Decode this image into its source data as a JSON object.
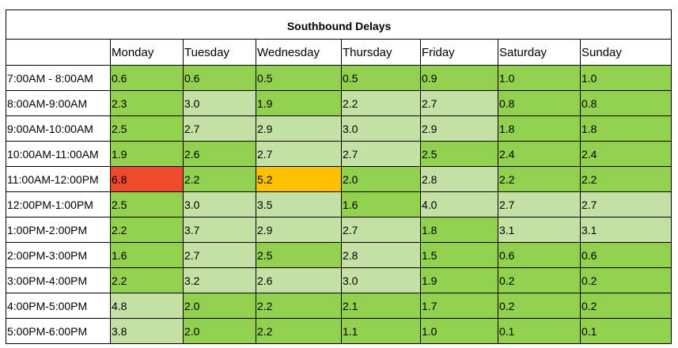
{
  "table": {
    "title": "Southbound Delays",
    "corner": "",
    "days": [
      "Monday",
      "Tuesday",
      "Wednesday",
      "Thursday",
      "Friday",
      "Saturday",
      "Sunday"
    ],
    "rows": [
      {
        "time": "7:00AM - 8:00AM",
        "values": [
          "0.6",
          "0.6",
          "0.5",
          "0.5",
          "0.9",
          "1.0",
          "1.0"
        ],
        "colors": [
          "#92d050",
          "#92d050",
          "#92d050",
          "#92d050",
          "#92d050",
          "#92d050",
          "#92d050"
        ]
      },
      {
        "time": "8:00AM-9:00AM",
        "values": [
          "2.3",
          "3.0",
          "1.9",
          "2.2",
          "2.7",
          "0.8",
          "0.8"
        ],
        "colors": [
          "#92d050",
          "#c4e0a5",
          "#92d050",
          "#c4e0a5",
          "#c4e0a5",
          "#92d050",
          "#92d050"
        ]
      },
      {
        "time": "9:00AM-10:00AM",
        "values": [
          "2.5",
          "2.7",
          "2.9",
          "3.0",
          "2.9",
          "1.8",
          "1.8"
        ],
        "colors": [
          "#92d050",
          "#c4e0a5",
          "#c4e0a5",
          "#c4e0a5",
          "#c4e0a5",
          "#92d050",
          "#92d050"
        ]
      },
      {
        "time": "10:00AM-11:00AM",
        "values": [
          "1.9",
          "2.6",
          "2.7",
          "2.7",
          "2.5",
          "2.4",
          "2.4"
        ],
        "colors": [
          "#92d050",
          "#92d050",
          "#c4e0a5",
          "#c4e0a5",
          "#92d050",
          "#92d050",
          "#92d050"
        ]
      },
      {
        "time": "11:00AM-12:00PM",
        "values": [
          "6.8",
          "2.2",
          "5.2",
          "2.0",
          "2.8",
          "2.2",
          "2.2"
        ],
        "colors": [
          "#f04a2e",
          "#92d050",
          "#ffc000",
          "#92d050",
          "#c4e0a5",
          "#92d050",
          "#92d050"
        ]
      },
      {
        "time": "12:00PM-1:00PM",
        "values": [
          "2.5",
          "3.0",
          "3.5",
          "1.6",
          "4.0",
          "2.7",
          "2.7"
        ],
        "colors": [
          "#92d050",
          "#c4e0a5",
          "#c4e0a5",
          "#92d050",
          "#c4e0a5",
          "#c4e0a5",
          "#c4e0a5"
        ]
      },
      {
        "time": "1:00PM-2:00PM",
        "values": [
          "2.2",
          "3.7",
          "2.9",
          "2.7",
          "1.8",
          "3.1",
          "3.1"
        ],
        "colors": [
          "#92d050",
          "#c4e0a5",
          "#c4e0a5",
          "#c4e0a5",
          "#92d050",
          "#c4e0a5",
          "#c4e0a5"
        ]
      },
      {
        "time": "2:00PM-3:00PM",
        "values": [
          "1.6",
          "2.7",
          "2.5",
          "2.8",
          "1.5",
          "0.6",
          "0.6"
        ],
        "colors": [
          "#92d050",
          "#c4e0a5",
          "#92d050",
          "#c4e0a5",
          "#92d050",
          "#92d050",
          "#92d050"
        ]
      },
      {
        "time": "3:00PM-4:00PM",
        "values": [
          "2.2",
          "3.2",
          "2.6",
          "3.0",
          "1.9",
          "0.2",
          "0.2"
        ],
        "colors": [
          "#92d050",
          "#c4e0a5",
          "#c4e0a5",
          "#c4e0a5",
          "#92d050",
          "#92d050",
          "#92d050"
        ]
      },
      {
        "time": "4:00PM-5:00PM",
        "values": [
          "4.8",
          "2.0",
          "2.2",
          "2.1",
          "1.7",
          "0.2",
          "0.2"
        ],
        "colors": [
          "#c4e0a5",
          "#92d050",
          "#92d050",
          "#92d050",
          "#92d050",
          "#92d050",
          "#92d050"
        ]
      },
      {
        "time": "5:00PM-6:00PM",
        "values": [
          "3.8",
          "2.0",
          "2.2",
          "1.1",
          "1.0",
          "0.1",
          "0.1"
        ],
        "colors": [
          "#c4e0a5",
          "#92d050",
          "#92d050",
          "#92d050",
          "#92d050",
          "#92d050",
          "#92d050"
        ]
      }
    ]
  }
}
